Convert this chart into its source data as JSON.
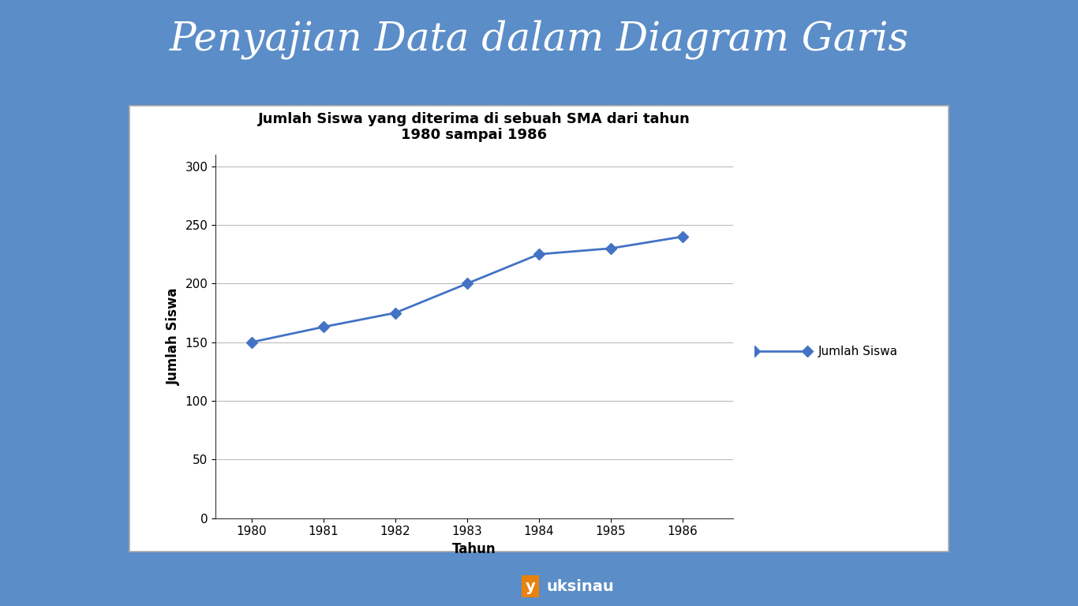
{
  "title": "Jumlah Siswa yang diterima di sebuah SMA dari tahun\n1980 sampai 1986",
  "xlabel": "Tahun",
  "ylabel": "Jumlah Siswa",
  "years": [
    1980,
    1981,
    1982,
    1983,
    1984,
    1985,
    1986
  ],
  "values": [
    150,
    163,
    175,
    200,
    225,
    230,
    240
  ],
  "ylim": [
    0,
    310
  ],
  "yticks": [
    0,
    50,
    100,
    150,
    200,
    250,
    300
  ],
  "line_color": "#4472C4",
  "marker": "D",
  "marker_size": 7,
  "legend_label": "Jumlah Siswa",
  "header_bg_color": "#5B8DC8",
  "header_text_color": "#FFFFFF",
  "header_title": "Penyajian Data dalam Diagram Garis",
  "footer_bg_color": "#5B8DC8",
  "footer_text": "uksinau",
  "middle_bg_color": "#FFFFFF",
  "panel_bg_color": "#FFFFFF",
  "panel_border_color": "#AAAAAA",
  "title_fontsize": 13,
  "axis_label_fontsize": 12,
  "tick_fontsize": 11,
  "legend_fontsize": 11,
  "header_fontsize": 36
}
